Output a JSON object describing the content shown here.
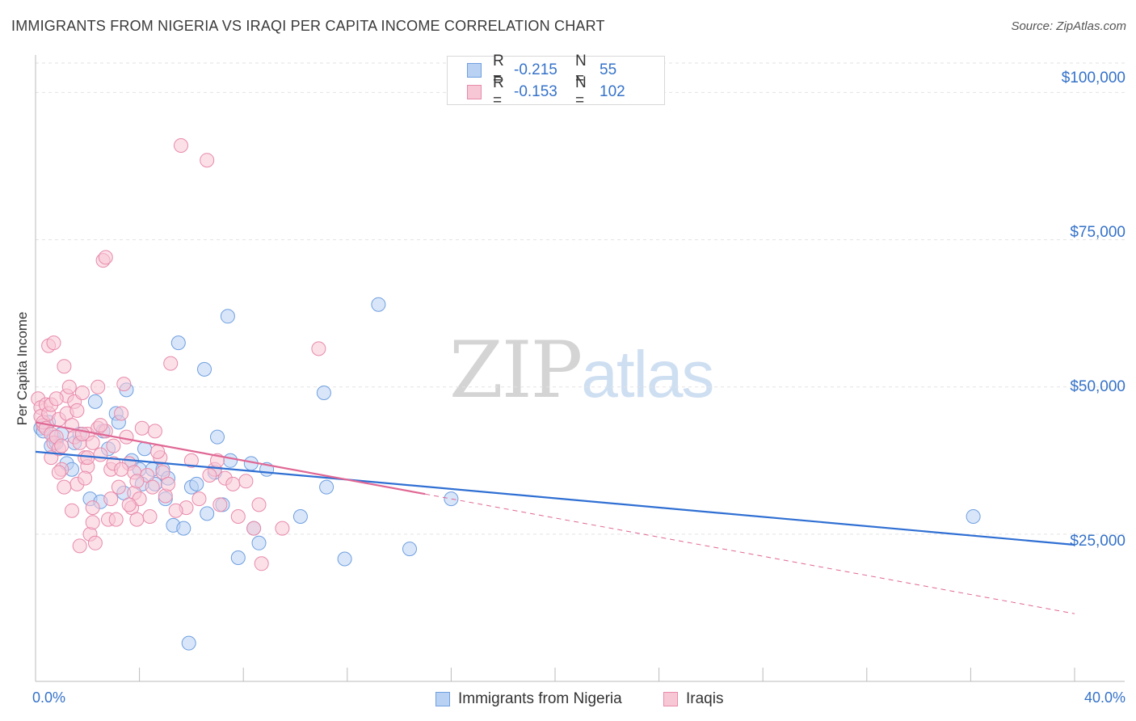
{
  "chart_data": {
    "type": "scatter",
    "title": "IMMIGRANTS FROM NIGERIA VS IRAQI PER CAPITA INCOME CORRELATION CHART",
    "source": "Source: ZipAtlas.com",
    "ylabel": "Per Capita Income",
    "xlabel": "",
    "xlim": [
      0,
      40
    ],
    "ylim": [
      0,
      105000
    ],
    "x_tick_labels": [
      "0.0%",
      "40.0%"
    ],
    "y_ticks": [
      25000,
      50000,
      75000,
      100000
    ],
    "y_tick_labels": [
      "$25,000",
      "$50,000",
      "$75,000",
      "$100,000"
    ],
    "grid": true,
    "legend": [
      {
        "name": "Immigrants from Nigeria",
        "r_label": "R =",
        "r": "-0.215",
        "n_label": "N =",
        "n": "55",
        "color": "#6f9fe0",
        "fill": "#b9d2f4"
      },
      {
        "name": "Iraqis",
        "r_label": "R =",
        "r": "-0.153",
        "n_label": "N =",
        "n": "102",
        "color": "#e88aaa",
        "fill": "#f8c7d6"
      }
    ],
    "series": [
      {
        "name": "Immigrants from Nigeria",
        "trend": {
          "x0": 0,
          "y0": 39000,
          "x1": 40,
          "y1": 23200,
          "solid_to": 40
        },
        "points": [
          [
            0.2,
            43000
          ],
          [
            0.3,
            42500
          ],
          [
            0.5,
            44000
          ],
          [
            0.6,
            40000
          ],
          [
            0.7,
            41500
          ],
          [
            0.8,
            40500
          ],
          [
            1.0,
            42000
          ],
          [
            1.2,
            37000
          ],
          [
            1.4,
            36000
          ],
          [
            1.5,
            40500
          ],
          [
            1.7,
            42000
          ],
          [
            2.1,
            31000
          ],
          [
            2.3,
            47500
          ],
          [
            2.5,
            30500
          ],
          [
            2.6,
            42500
          ],
          [
            2.8,
            39500
          ],
          [
            3.1,
            45500
          ],
          [
            3.2,
            44000
          ],
          [
            3.4,
            32000
          ],
          [
            3.5,
            49500
          ],
          [
            3.7,
            37500
          ],
          [
            4.0,
            36000
          ],
          [
            4.1,
            33500
          ],
          [
            4.2,
            39500
          ],
          [
            4.5,
            36000
          ],
          [
            4.6,
            33500
          ],
          [
            4.9,
            36000
          ],
          [
            5.0,
            31000
          ],
          [
            5.1,
            34500
          ],
          [
            5.3,
            26500
          ],
          [
            5.5,
            57500
          ],
          [
            5.7,
            26000
          ],
          [
            5.9,
            6500
          ],
          [
            6.0,
            33000
          ],
          [
            6.2,
            33500
          ],
          [
            6.5,
            53000
          ],
          [
            6.6,
            28500
          ],
          [
            6.9,
            35500
          ],
          [
            7.0,
            41500
          ],
          [
            7.2,
            30000
          ],
          [
            7.4,
            62000
          ],
          [
            7.5,
            37500
          ],
          [
            7.8,
            21000
          ],
          [
            8.3,
            37000
          ],
          [
            8.4,
            26000
          ],
          [
            8.6,
            23500
          ],
          [
            8.9,
            36000
          ],
          [
            10.2,
            28000
          ],
          [
            11.2,
            33000
          ],
          [
            11.1,
            49000
          ],
          [
            11.9,
            20800
          ],
          [
            13.2,
            64000
          ],
          [
            14.4,
            22500
          ],
          [
            16.0,
            31000
          ],
          [
            36.1,
            28000
          ]
        ]
      },
      {
        "name": "Iraqis",
        "trend": {
          "x0": 0,
          "y0": 44000,
          "x1": 40,
          "y1": 11500,
          "solid_to": 15
        },
        "points": [
          [
            0.1,
            48000
          ],
          [
            0.2,
            46500
          ],
          [
            0.2,
            45000
          ],
          [
            0.3,
            43500
          ],
          [
            0.3,
            44000
          ],
          [
            0.4,
            47000
          ],
          [
            0.4,
            43000
          ],
          [
            0.5,
            45500
          ],
          [
            0.5,
            57000
          ],
          [
            0.6,
            47000
          ],
          [
            0.6,
            42000
          ],
          [
            0.7,
            40500
          ],
          [
            0.7,
            57500
          ],
          [
            0.8,
            41500
          ],
          [
            0.9,
            39500
          ],
          [
            0.9,
            44500
          ],
          [
            1.0,
            36000
          ],
          [
            1.0,
            40000
          ],
          [
            1.1,
            53500
          ],
          [
            1.2,
            45500
          ],
          [
            1.2,
            48500
          ],
          [
            1.3,
            50000
          ],
          [
            1.4,
            43500
          ],
          [
            1.5,
            41500
          ],
          [
            1.5,
            47500
          ],
          [
            1.6,
            33500
          ],
          [
            1.7,
            40500
          ],
          [
            1.7,
            23000
          ],
          [
            1.8,
            49000
          ],
          [
            1.9,
            38000
          ],
          [
            2.0,
            36500
          ],
          [
            2.0,
            42000
          ],
          [
            2.1,
            25000
          ],
          [
            2.2,
            29500
          ],
          [
            2.2,
            40500
          ],
          [
            2.3,
            23500
          ],
          [
            2.4,
            50000
          ],
          [
            2.4,
            43000
          ],
          [
            2.5,
            38500
          ],
          [
            2.6,
            71500
          ],
          [
            2.7,
            72000
          ],
          [
            2.7,
            42500
          ],
          [
            2.8,
            27500
          ],
          [
            2.9,
            36000
          ],
          [
            3.0,
            40000
          ],
          [
            3.0,
            37000
          ],
          [
            3.1,
            27500
          ],
          [
            3.2,
            33000
          ],
          [
            3.3,
            45500
          ],
          [
            3.4,
            50500
          ],
          [
            3.5,
            41500
          ],
          [
            3.6,
            37000
          ],
          [
            3.7,
            29500
          ],
          [
            3.8,
            35500
          ],
          [
            3.8,
            32000
          ],
          [
            3.9,
            27500
          ],
          [
            4.0,
            31000
          ],
          [
            4.1,
            43000
          ],
          [
            4.3,
            35000
          ],
          [
            4.5,
            33000
          ],
          [
            4.6,
            42500
          ],
          [
            4.8,
            38000
          ],
          [
            4.9,
            35500
          ],
          [
            5.0,
            31500
          ],
          [
            5.1,
            33500
          ],
          [
            5.2,
            54000
          ],
          [
            5.6,
            91000
          ],
          [
            5.8,
            29500
          ],
          [
            6.0,
            37500
          ],
          [
            6.3,
            31000
          ],
          [
            6.6,
            88500
          ],
          [
            6.9,
            36000
          ],
          [
            7.1,
            30000
          ],
          [
            7.3,
            34500
          ],
          [
            7.6,
            33500
          ],
          [
            7.8,
            28000
          ],
          [
            8.1,
            34000
          ],
          [
            8.4,
            26000
          ],
          [
            8.7,
            20000
          ],
          [
            8.6,
            30000
          ],
          [
            10.9,
            56500
          ],
          [
            2.0,
            38000
          ],
          [
            3.3,
            36000
          ],
          [
            1.9,
            34500
          ],
          [
            2.9,
            31000
          ],
          [
            3.6,
            30000
          ],
          [
            4.4,
            28000
          ],
          [
            1.4,
            29000
          ],
          [
            0.9,
            35500
          ],
          [
            2.5,
            43500
          ],
          [
            1.6,
            46000
          ],
          [
            0.8,
            48000
          ],
          [
            4.7,
            39000
          ],
          [
            3.9,
            34000
          ],
          [
            6.7,
            35000
          ],
          [
            5.4,
            29000
          ],
          [
            2.2,
            27000
          ],
          [
            1.1,
            33000
          ],
          [
            0.6,
            38000
          ],
          [
            7.0,
            37500
          ],
          [
            9.5,
            26000
          ],
          [
            1.8,
            42000
          ]
        ]
      }
    ]
  }
}
